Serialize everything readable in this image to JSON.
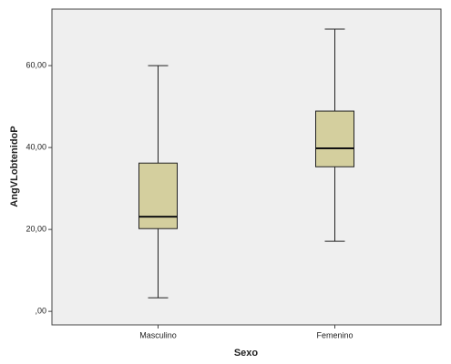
{
  "chart_data": {
    "type": "box",
    "x_label": "Sexo",
    "y_label": "AngVLobtenidoP",
    "categories": [
      "Masculino",
      "Femenino"
    ],
    "stats": [
      {
        "whislo": 3.3,
        "q1": 20.2,
        "med": 23.1,
        "q3": 36.2,
        "whishi": 60
      },
      {
        "whislo": 17.1,
        "q1": 35.3,
        "med": 39.8,
        "q3": 48.9,
        "whishi": 68.9
      }
    ],
    "color": "#d4cf9e",
    "ylim": [
      -3.3,
      73.8
    ],
    "yticks": [
      {
        "value": 0,
        "label": ",00"
      },
      {
        "value": 20,
        "label": "20,00"
      },
      {
        "value": 40,
        "label": "40,00"
      },
      {
        "value": 60,
        "label": "60,00"
      }
    ]
  }
}
